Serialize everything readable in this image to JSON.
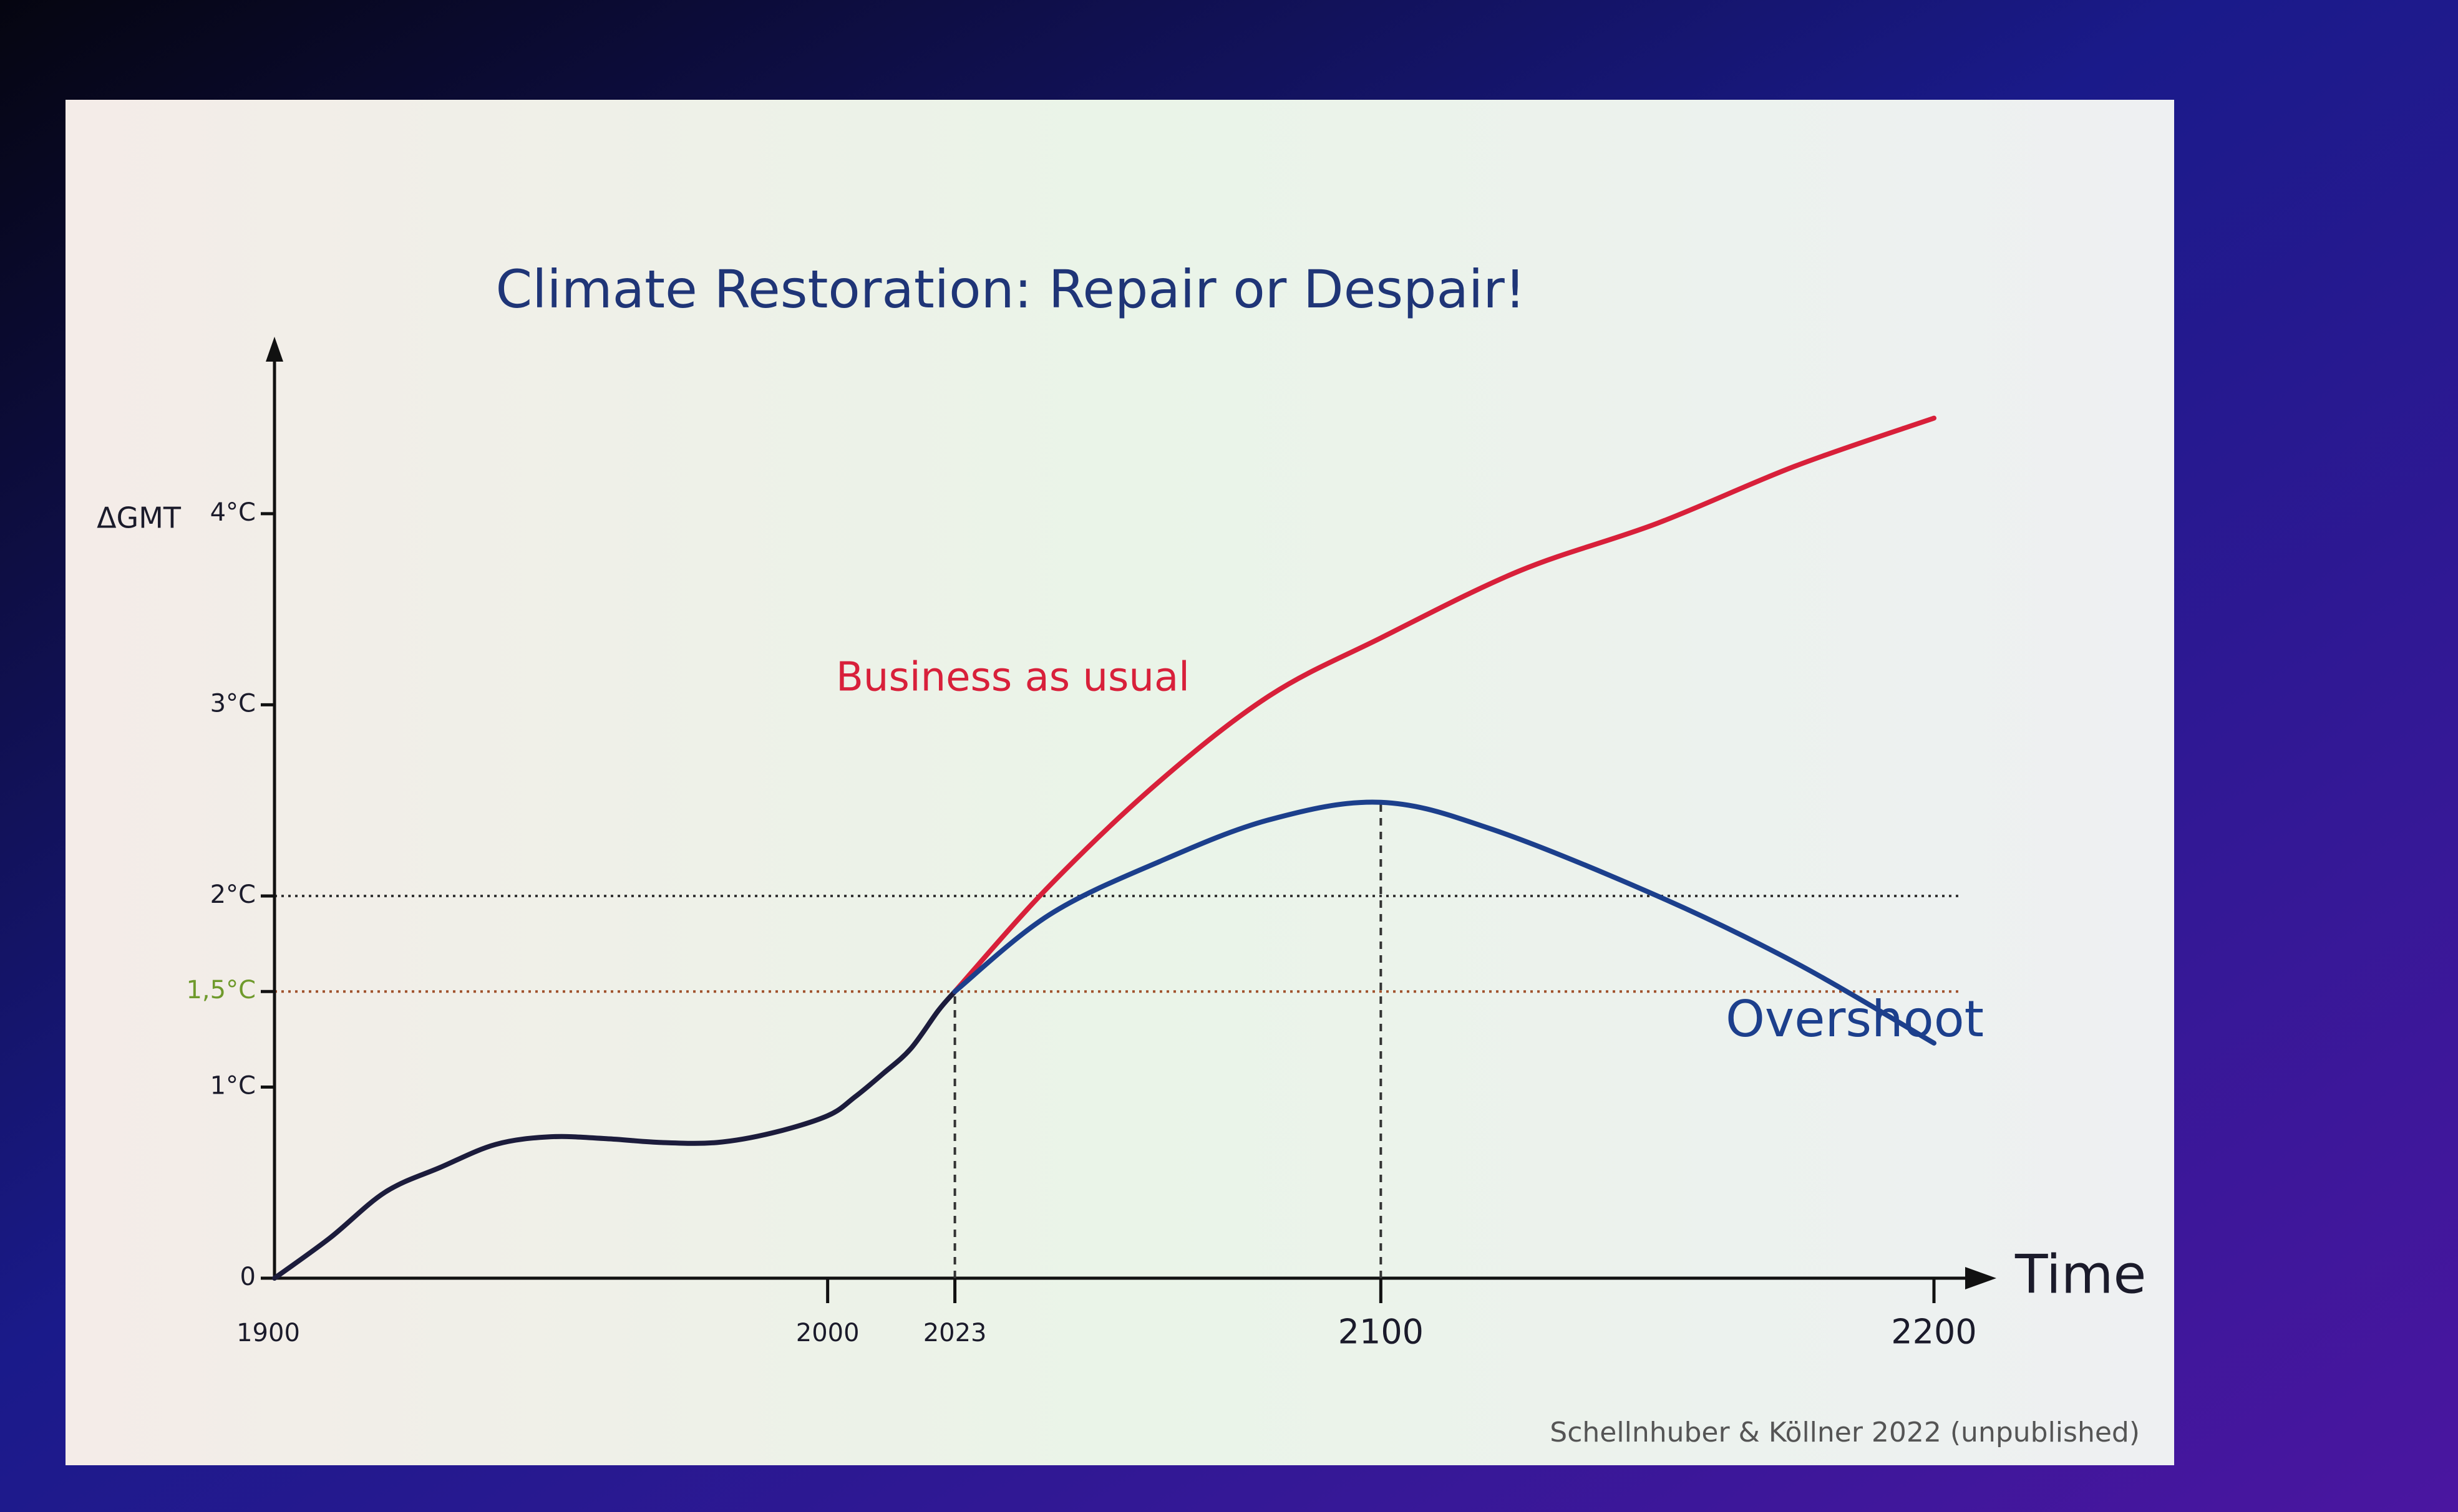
{
  "chart_data": {
    "type": "line",
    "title": "Climate Restoration: Repair or Despair!",
    "y_label": "ΔGMT",
    "x_label": "Time",
    "source": "Schellnhuber & Köllner 2022 (unpublished)",
    "xlim": [
      1900,
      2200
    ],
    "xticks": [
      1900,
      2000,
      2023,
      2100,
      2200
    ],
    "ylim": [
      0,
      4.6
    ],
    "yticks": [
      0,
      {
        "value": 1,
        "label": "1°C"
      },
      {
        "value": 1.5,
        "label": "1,5°C",
        "color": "#6f9a2c"
      },
      {
        "value": 2,
        "label": "2°C"
      },
      {
        "value": 3,
        "label": "3°C"
      },
      {
        "value": 4,
        "label": "4°C"
      }
    ],
    "reference_lines": [
      {
        "y": 2,
        "color": "#333333"
      },
      {
        "y": 1.5,
        "color": "#a0522d"
      }
    ],
    "guide_x": [
      2023,
      2100
    ],
    "series": [
      {
        "color": "#1c1c3c",
        "x": [
          1900,
          1910,
          1920,
          1930,
          1940,
          1950,
          1960,
          1970,
          1980,
          1990,
          2000,
          2005,
          2010,
          2015,
          2020,
          2023
        ],
        "values": [
          0,
          0.21,
          0.45,
          0.58,
          0.7,
          0.74,
          0.73,
          0.71,
          0.71,
          0.76,
          0.85,
          0.95,
          1.07,
          1.2,
          1.4,
          1.5
        ]
      },
      {
        "name": "Business as usual",
        "color": "#d8203a",
        "x": [
          2023,
          2040,
          2060,
          2080,
          2100,
          2125,
          2150,
          2175,
          2200
        ],
        "values": [
          1.5,
          2.05,
          2.6,
          3.05,
          3.35,
          3.7,
          3.95,
          4.25,
          4.5
        ]
      },
      {
        "name": "Overshoot",
        "color": "#1c3f8c",
        "x": [
          2023,
          2040,
          2060,
          2080,
          2100,
          2120,
          2150,
          2175,
          2200
        ],
        "values": [
          1.5,
          1.9,
          2.18,
          2.4,
          2.49,
          2.35,
          2.0,
          1.65,
          1.23
        ]
      }
    ]
  }
}
